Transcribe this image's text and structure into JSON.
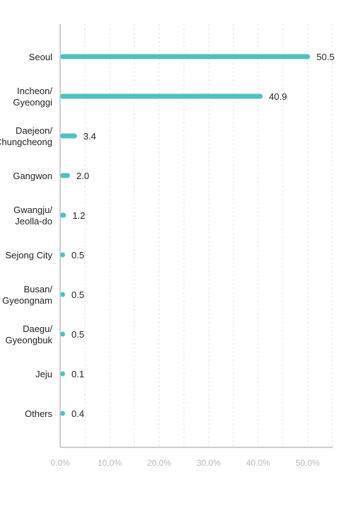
{
  "chart_data": {
    "type": "bar",
    "orientation": "horizontal",
    "categories": [
      [
        "Seoul"
      ],
      [
        "Incheon/",
        "Gyeonggi"
      ],
      [
        "Daejeon/",
        "Chungcheong"
      ],
      [
        "Gangwon"
      ],
      [
        "Gwangju/",
        "Jeolla-do"
      ],
      [
        "Sejong City"
      ],
      [
        "Busan/",
        "Gyeongnam"
      ],
      [
        "Daegu/",
        "Gyeongbuk"
      ],
      [
        "Jeju"
      ],
      [
        "Others"
      ]
    ],
    "values": [
      50.5,
      40.9,
      3.4,
      2.0,
      1.2,
      0.5,
      0.5,
      0.5,
      0.1,
      0.4
    ],
    "value_labels": [
      "50.5",
      "40.9",
      "3.4",
      "2.0",
      "1.2",
      "0.5",
      "0.5",
      "0.5",
      "0.1",
      "0.4"
    ],
    "xlim": [
      0,
      55
    ],
    "xticks": [
      0,
      10,
      20,
      30,
      40,
      50
    ],
    "xtick_labels": [
      "0.0%",
      "10.0%",
      "20.0%",
      "30.0%",
      "40.0%",
      "50.0%"
    ],
    "grid": "vertical dashed",
    "bar_color": "#52c0c0",
    "title": "",
    "xlabel": "",
    "ylabel": ""
  }
}
